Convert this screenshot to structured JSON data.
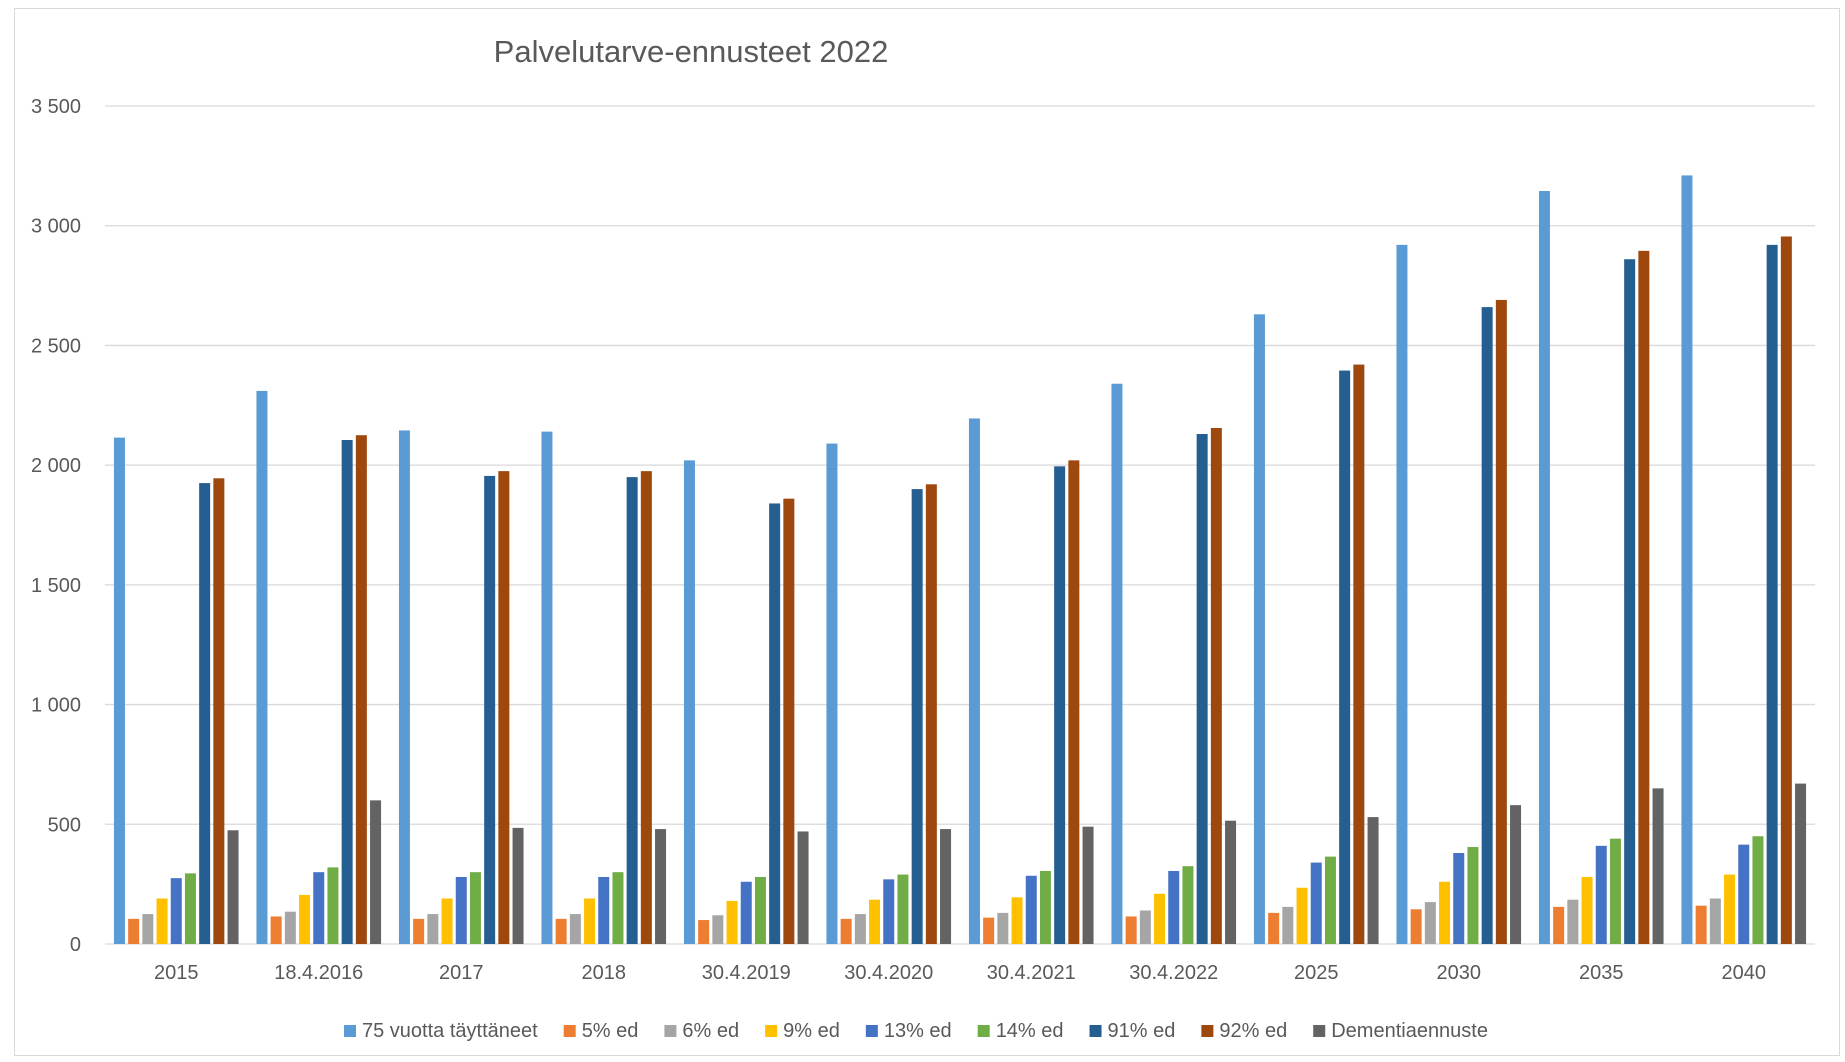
{
  "chart_data": {
    "type": "bar",
    "title": "Palvelutarve-ennusteet 2022",
    "xlabel": "",
    "ylabel": "",
    "ylim": [
      0,
      3500
    ],
    "yticks": [
      0,
      500,
      1000,
      1500,
      2000,
      2500,
      3000,
      3500
    ],
    "ytick_labels": [
      "0",
      "500",
      "1 000",
      "1 500",
      "2 000",
      "2 500",
      "3 000",
      "3 500"
    ],
    "grid": true,
    "legend_position": "bottom",
    "categories": [
      "2015",
      "18.4.2016",
      "2017",
      "2018",
      "30.4.2019",
      "30.4.2020",
      "30.4.2021",
      "30.4.2022",
      "2025",
      "2030",
      "2035",
      "2040"
    ],
    "series": [
      {
        "name": "75 vuotta täyttäneet",
        "color": "#5b9bd5",
        "values": [
          2115,
          2310,
          2145,
          2140,
          2020,
          2090,
          2195,
          2340,
          2630,
          2920,
          3145,
          3210
        ]
      },
      {
        "name": "5% ed",
        "color": "#ed7d31",
        "values": [
          105,
          115,
          105,
          105,
          100,
          105,
          110,
          115,
          130,
          145,
          155,
          160
        ]
      },
      {
        "name": "6% ed",
        "color": "#a5a5a5",
        "values": [
          125,
          135,
          125,
          125,
          120,
          125,
          130,
          140,
          155,
          175,
          185,
          190
        ]
      },
      {
        "name": "9% ed",
        "color": "#ffc000",
        "values": [
          190,
          205,
          190,
          190,
          180,
          185,
          195,
          210,
          235,
          260,
          280,
          290
        ]
      },
      {
        "name": "13% ed",
        "color": "#4472c4",
        "values": [
          275,
          300,
          280,
          280,
          260,
          270,
          285,
          305,
          340,
          380,
          410,
          415
        ]
      },
      {
        "name": "14% ed",
        "color": "#70ad47",
        "values": [
          295,
          320,
          300,
          300,
          280,
          290,
          305,
          325,
          365,
          405,
          440,
          450
        ]
      },
      {
        "name": "91% ed",
        "color": "#255e91",
        "values": [
          1925,
          2105,
          1955,
          1950,
          1840,
          1900,
          1995,
          2130,
          2395,
          2660,
          2860,
          2920
        ]
      },
      {
        "name": "92% ed",
        "color": "#9e480e",
        "values": [
          1945,
          2125,
          1975,
          1975,
          1860,
          1920,
          2020,
          2155,
          2420,
          2690,
          2895,
          2955
        ]
      },
      {
        "name": "Dementiaennuste",
        "color": "#636363",
        "values": [
          475,
          600,
          485,
          480,
          470,
          480,
          490,
          515,
          530,
          580,
          650,
          670
        ]
      }
    ]
  }
}
